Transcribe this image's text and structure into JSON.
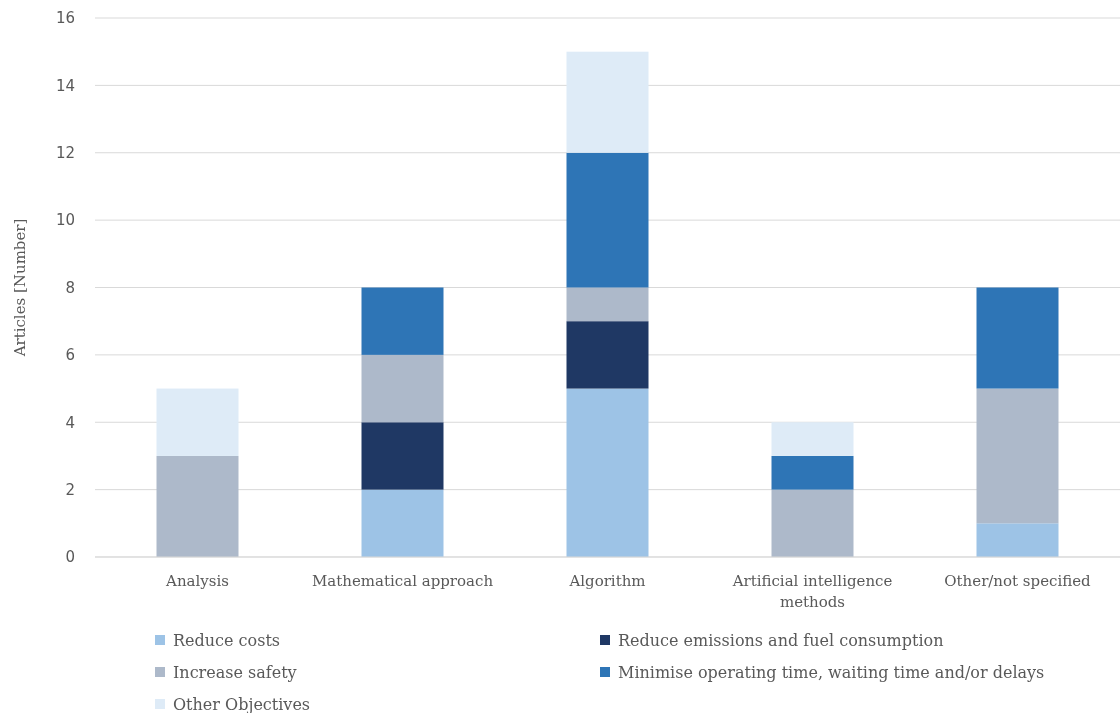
{
  "chart_data": {
    "type": "bar",
    "stacked": true,
    "ylabel": "Articles [Number]",
    "categories": [
      "Analysis",
      "Mathematical approach",
      "Algorithm",
      "Artificial intelligence methods",
      "Other/not specified"
    ],
    "series": [
      {
        "name": "Reduce costs",
        "color": "#9dc3e6",
        "values": [
          0,
          2,
          5,
          0,
          1
        ]
      },
      {
        "name": "Reduce emissions and fuel consumption",
        "color": "#1f3864",
        "values": [
          0,
          2,
          2,
          0,
          0
        ]
      },
      {
        "name": "Increase safety",
        "color": "#adb9ca",
        "values": [
          3,
          2,
          1,
          2,
          4
        ]
      },
      {
        "name": "Minimise operating time, waiting time and/or delays",
        "color": "#2e75b6",
        "values": [
          0,
          2,
          4,
          1,
          3
        ]
      },
      {
        "name": "Other Objectives",
        "color": "#deebf7",
        "values": [
          2,
          0,
          3,
          1,
          0
        ]
      }
    ],
    "ylim": [
      0,
      16
    ],
    "yticks": [
      0,
      2,
      4,
      6,
      8,
      10,
      12,
      14,
      16
    ],
    "grid": "y",
    "legend": "bottom"
  }
}
